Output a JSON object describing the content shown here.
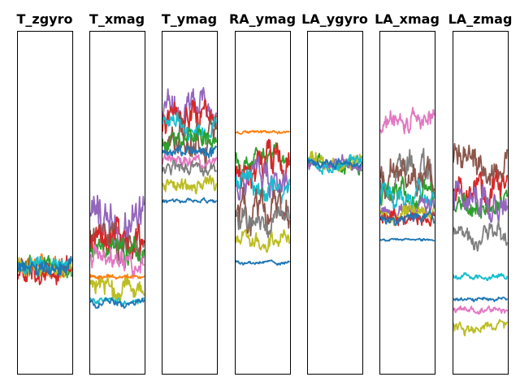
{
  "chart_data": [
    {
      "type": "line",
      "title": "T_zgyro",
      "ylim": [
        0,
        1
      ],
      "xlabel": "",
      "ylabel": "",
      "series": [
        {
          "color": "#ff7f0e",
          "center": 0.31,
          "amp": 0.012,
          "noise": 0.02
        },
        {
          "color": "#2ca02c",
          "center": 0.31,
          "amp": 0.01,
          "noise": 0.03
        },
        {
          "color": "#d62728",
          "center": 0.3,
          "amp": 0.015,
          "noise": 0.04
        },
        {
          "color": "#bcbd22",
          "center": 0.31,
          "amp": 0.01,
          "noise": 0.03
        },
        {
          "color": "#17becf",
          "center": 0.32,
          "amp": 0.01,
          "noise": 0.025
        },
        {
          "color": "#1f77b4",
          "center": 0.31,
          "amp": 0.008,
          "noise": 0.03
        }
      ]
    },
    {
      "type": "line",
      "title": "T_xmag",
      "ylim": [
        0,
        1
      ],
      "xlabel": "",
      "ylabel": "",
      "series": [
        {
          "color": "#9467bd",
          "center": 0.44,
          "amp": 0.05,
          "noise": 0.03
        },
        {
          "color": "#8c564b",
          "center": 0.4,
          "amp": 0.03,
          "noise": 0.025
        },
        {
          "color": "#d62728",
          "center": 0.37,
          "amp": 0.03,
          "noise": 0.03
        },
        {
          "color": "#2ca02c",
          "center": 0.35,
          "amp": 0.02,
          "noise": 0.025
        },
        {
          "color": "#e377c2",
          "center": 0.34,
          "amp": 0.02,
          "noise": 0.02
        },
        {
          "color": "#bcbd22",
          "center": 0.25,
          "amp": 0.015,
          "noise": 0.03
        },
        {
          "color": "#ff7f0e",
          "center": 0.285,
          "amp": 0.003,
          "noise": 0.006
        },
        {
          "color": "#17becf",
          "center": 0.215,
          "amp": 0.005,
          "noise": 0.008
        },
        {
          "color": "#1f77b4",
          "center": 0.205,
          "amp": 0.006,
          "noise": 0.008
        }
      ]
    },
    {
      "type": "line",
      "title": "T_ymag",
      "ylim": [
        0,
        1
      ],
      "xlabel": "",
      "ylabel": "",
      "series": [
        {
          "color": "#9467bd",
          "center": 0.77,
          "amp": 0.03,
          "noise": 0.03
        },
        {
          "color": "#d62728",
          "center": 0.74,
          "amp": 0.03,
          "noise": 0.03
        },
        {
          "color": "#8c564b",
          "center": 0.72,
          "amp": 0.03,
          "noise": 0.03
        },
        {
          "color": "#17becf",
          "center": 0.73,
          "amp": 0.015,
          "noise": 0.025
        },
        {
          "color": "#2ca02c",
          "center": 0.69,
          "amp": 0.015,
          "noise": 0.02
        },
        {
          "color": "#1f77b4",
          "center": 0.65,
          "amp": 0.01,
          "noise": 0.015
        },
        {
          "color": "#e377c2",
          "center": 0.62,
          "amp": 0.01,
          "noise": 0.015
        },
        {
          "color": "#7f7f7f",
          "center": 0.6,
          "amp": 0.01,
          "noise": 0.015
        },
        {
          "color": "#bcbd22",
          "center": 0.55,
          "amp": 0.01,
          "noise": 0.02
        },
        {
          "color": "#1f77b4",
          "center": 0.505,
          "amp": 0.003,
          "noise": 0.005
        }
      ]
    },
    {
      "type": "line",
      "title": "RA_ymag",
      "ylim": [
        0,
        1
      ],
      "xlabel": "",
      "ylabel": "",
      "series": [
        {
          "color": "#ff7f0e",
          "center": 0.705,
          "amp": 0.002,
          "noise": 0.004
        },
        {
          "color": "#2ca02c",
          "center": 0.63,
          "amp": 0.02,
          "noise": 0.02
        },
        {
          "color": "#d62728",
          "center": 0.6,
          "amp": 0.03,
          "noise": 0.04
        },
        {
          "color": "#9467bd",
          "center": 0.56,
          "amp": 0.03,
          "noise": 0.03
        },
        {
          "color": "#17becf",
          "center": 0.55,
          "amp": 0.02,
          "noise": 0.02
        },
        {
          "color": "#8c564b",
          "center": 0.47,
          "amp": 0.03,
          "noise": 0.03
        },
        {
          "color": "#7f7f7f",
          "center": 0.45,
          "amp": 0.02,
          "noise": 0.025
        },
        {
          "color": "#bcbd22",
          "center": 0.39,
          "amp": 0.015,
          "noise": 0.02
        },
        {
          "color": "#1f77b4",
          "center": 0.325,
          "amp": 0.003,
          "noise": 0.004
        }
      ]
    },
    {
      "type": "line",
      "title": "LA_ygyro",
      "ylim": [
        0,
        1
      ],
      "xlabel": "",
      "ylabel": "",
      "series": [
        {
          "color": "#2ca02c",
          "center": 0.61,
          "amp": 0.01,
          "noise": 0.02
        },
        {
          "color": "#bcbd22",
          "center": 0.62,
          "amp": 0.01,
          "noise": 0.025
        },
        {
          "color": "#9467bd",
          "center": 0.61,
          "amp": 0.008,
          "noise": 0.02
        },
        {
          "color": "#17becf",
          "center": 0.615,
          "amp": 0.008,
          "noise": 0.015
        },
        {
          "color": "#1f77b4",
          "center": 0.61,
          "amp": 0.006,
          "noise": 0.012
        }
      ]
    },
    {
      "type": "line",
      "title": "LA_xmag",
      "ylim": [
        0,
        1
      ],
      "xlabel": "",
      "ylabel": "",
      "series": [
        {
          "color": "#e377c2",
          "center": 0.73,
          "amp": 0.02,
          "noise": 0.02
        },
        {
          "color": "#7f7f7f",
          "center": 0.57,
          "amp": 0.03,
          "noise": 0.03
        },
        {
          "color": "#8c564b",
          "center": 0.58,
          "amp": 0.03,
          "noise": 0.03
        },
        {
          "color": "#2ca02c",
          "center": 0.52,
          "amp": 0.02,
          "noise": 0.025
        },
        {
          "color": "#17becf",
          "center": 0.51,
          "amp": 0.02,
          "noise": 0.025
        },
        {
          "color": "#9467bd",
          "center": 0.48,
          "amp": 0.015,
          "noise": 0.02
        },
        {
          "color": "#bcbd22",
          "center": 0.47,
          "amp": 0.015,
          "noise": 0.02
        },
        {
          "color": "#d62728",
          "center": 0.45,
          "amp": 0.01,
          "noise": 0.02
        },
        {
          "color": "#1f77b4",
          "center": 0.455,
          "amp": 0.008,
          "noise": 0.012
        },
        {
          "color": "#1f77b4",
          "center": 0.39,
          "amp": 0.002,
          "noise": 0.003
        }
      ]
    },
    {
      "type": "line",
      "title": "LA_zmag",
      "ylim": [
        0,
        1
      ],
      "xlabel": "",
      "ylabel": "",
      "series": [
        {
          "color": "#8c564b",
          "center": 0.61,
          "amp": 0.03,
          "noise": 0.03
        },
        {
          "color": "#d62728",
          "center": 0.53,
          "amp": 0.03,
          "noise": 0.03
        },
        {
          "color": "#2ca02c",
          "center": 0.49,
          "amp": 0.02,
          "noise": 0.02
        },
        {
          "color": "#9467bd",
          "center": 0.5,
          "amp": 0.03,
          "noise": 0.03
        },
        {
          "color": "#7f7f7f",
          "center": 0.41,
          "amp": 0.02,
          "noise": 0.025
        },
        {
          "color": "#17becf",
          "center": 0.285,
          "amp": 0.004,
          "noise": 0.008
        },
        {
          "color": "#1f77b4",
          "center": 0.215,
          "amp": 0.003,
          "noise": 0.005
        },
        {
          "color": "#e377c2",
          "center": 0.185,
          "amp": 0.005,
          "noise": 0.01
        },
        {
          "color": "#bcbd22",
          "center": 0.135,
          "amp": 0.008,
          "noise": 0.012
        }
      ]
    }
  ]
}
